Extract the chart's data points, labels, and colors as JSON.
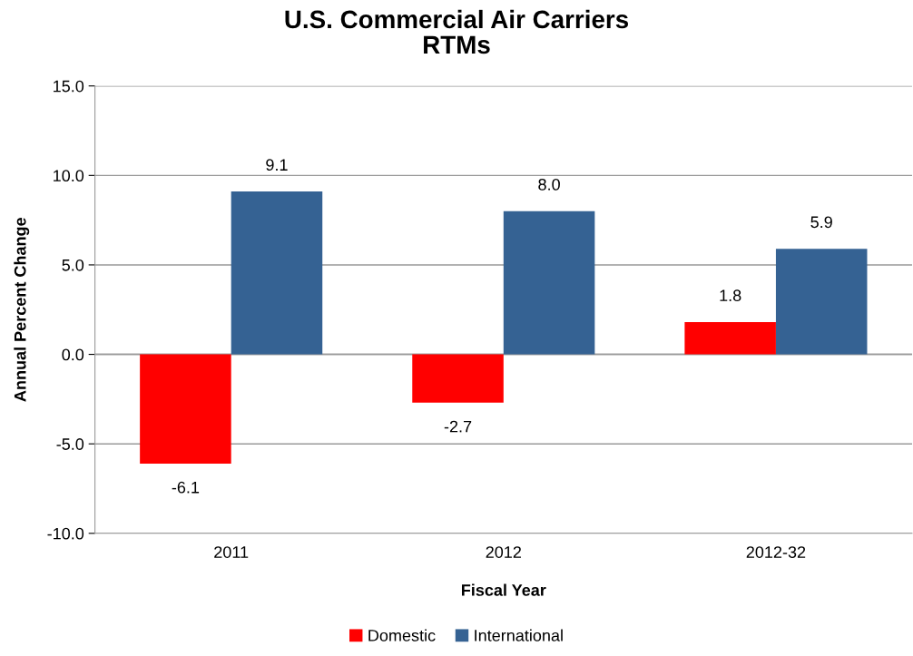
{
  "chart_data": {
    "type": "bar",
    "title": "U.S. Commercial Air Carriers\nRTMs",
    "xlabel": "Fiscal Year",
    "ylabel": "Annual Percent Change",
    "categories": [
      "2011",
      "2012",
      "2012-32"
    ],
    "series": [
      {
        "name": "Domestic",
        "color": "#ff0000",
        "values": [
          -6.1,
          -2.7,
          1.8
        ],
        "value_labels": [
          "-6.1",
          "-2.7",
          "1.8"
        ]
      },
      {
        "name": "International",
        "color": "#356293",
        "values": [
          9.1,
          8.0,
          5.9
        ],
        "value_labels": [
          "9.1",
          "8.0",
          "5.9"
        ]
      }
    ],
    "ylim": [
      -10,
      15
    ],
    "yticks": [
      {
        "value": -10,
        "label": "-10.0"
      },
      {
        "value": -5,
        "label": "-5.0"
      },
      {
        "value": 0,
        "label": "0.0"
      },
      {
        "value": 5,
        "label": "5.0"
      },
      {
        "value": 10,
        "label": "10.0"
      },
      {
        "value": 15,
        "label": "15.0"
      }
    ],
    "grid": "y",
    "legend": "bottom"
  }
}
